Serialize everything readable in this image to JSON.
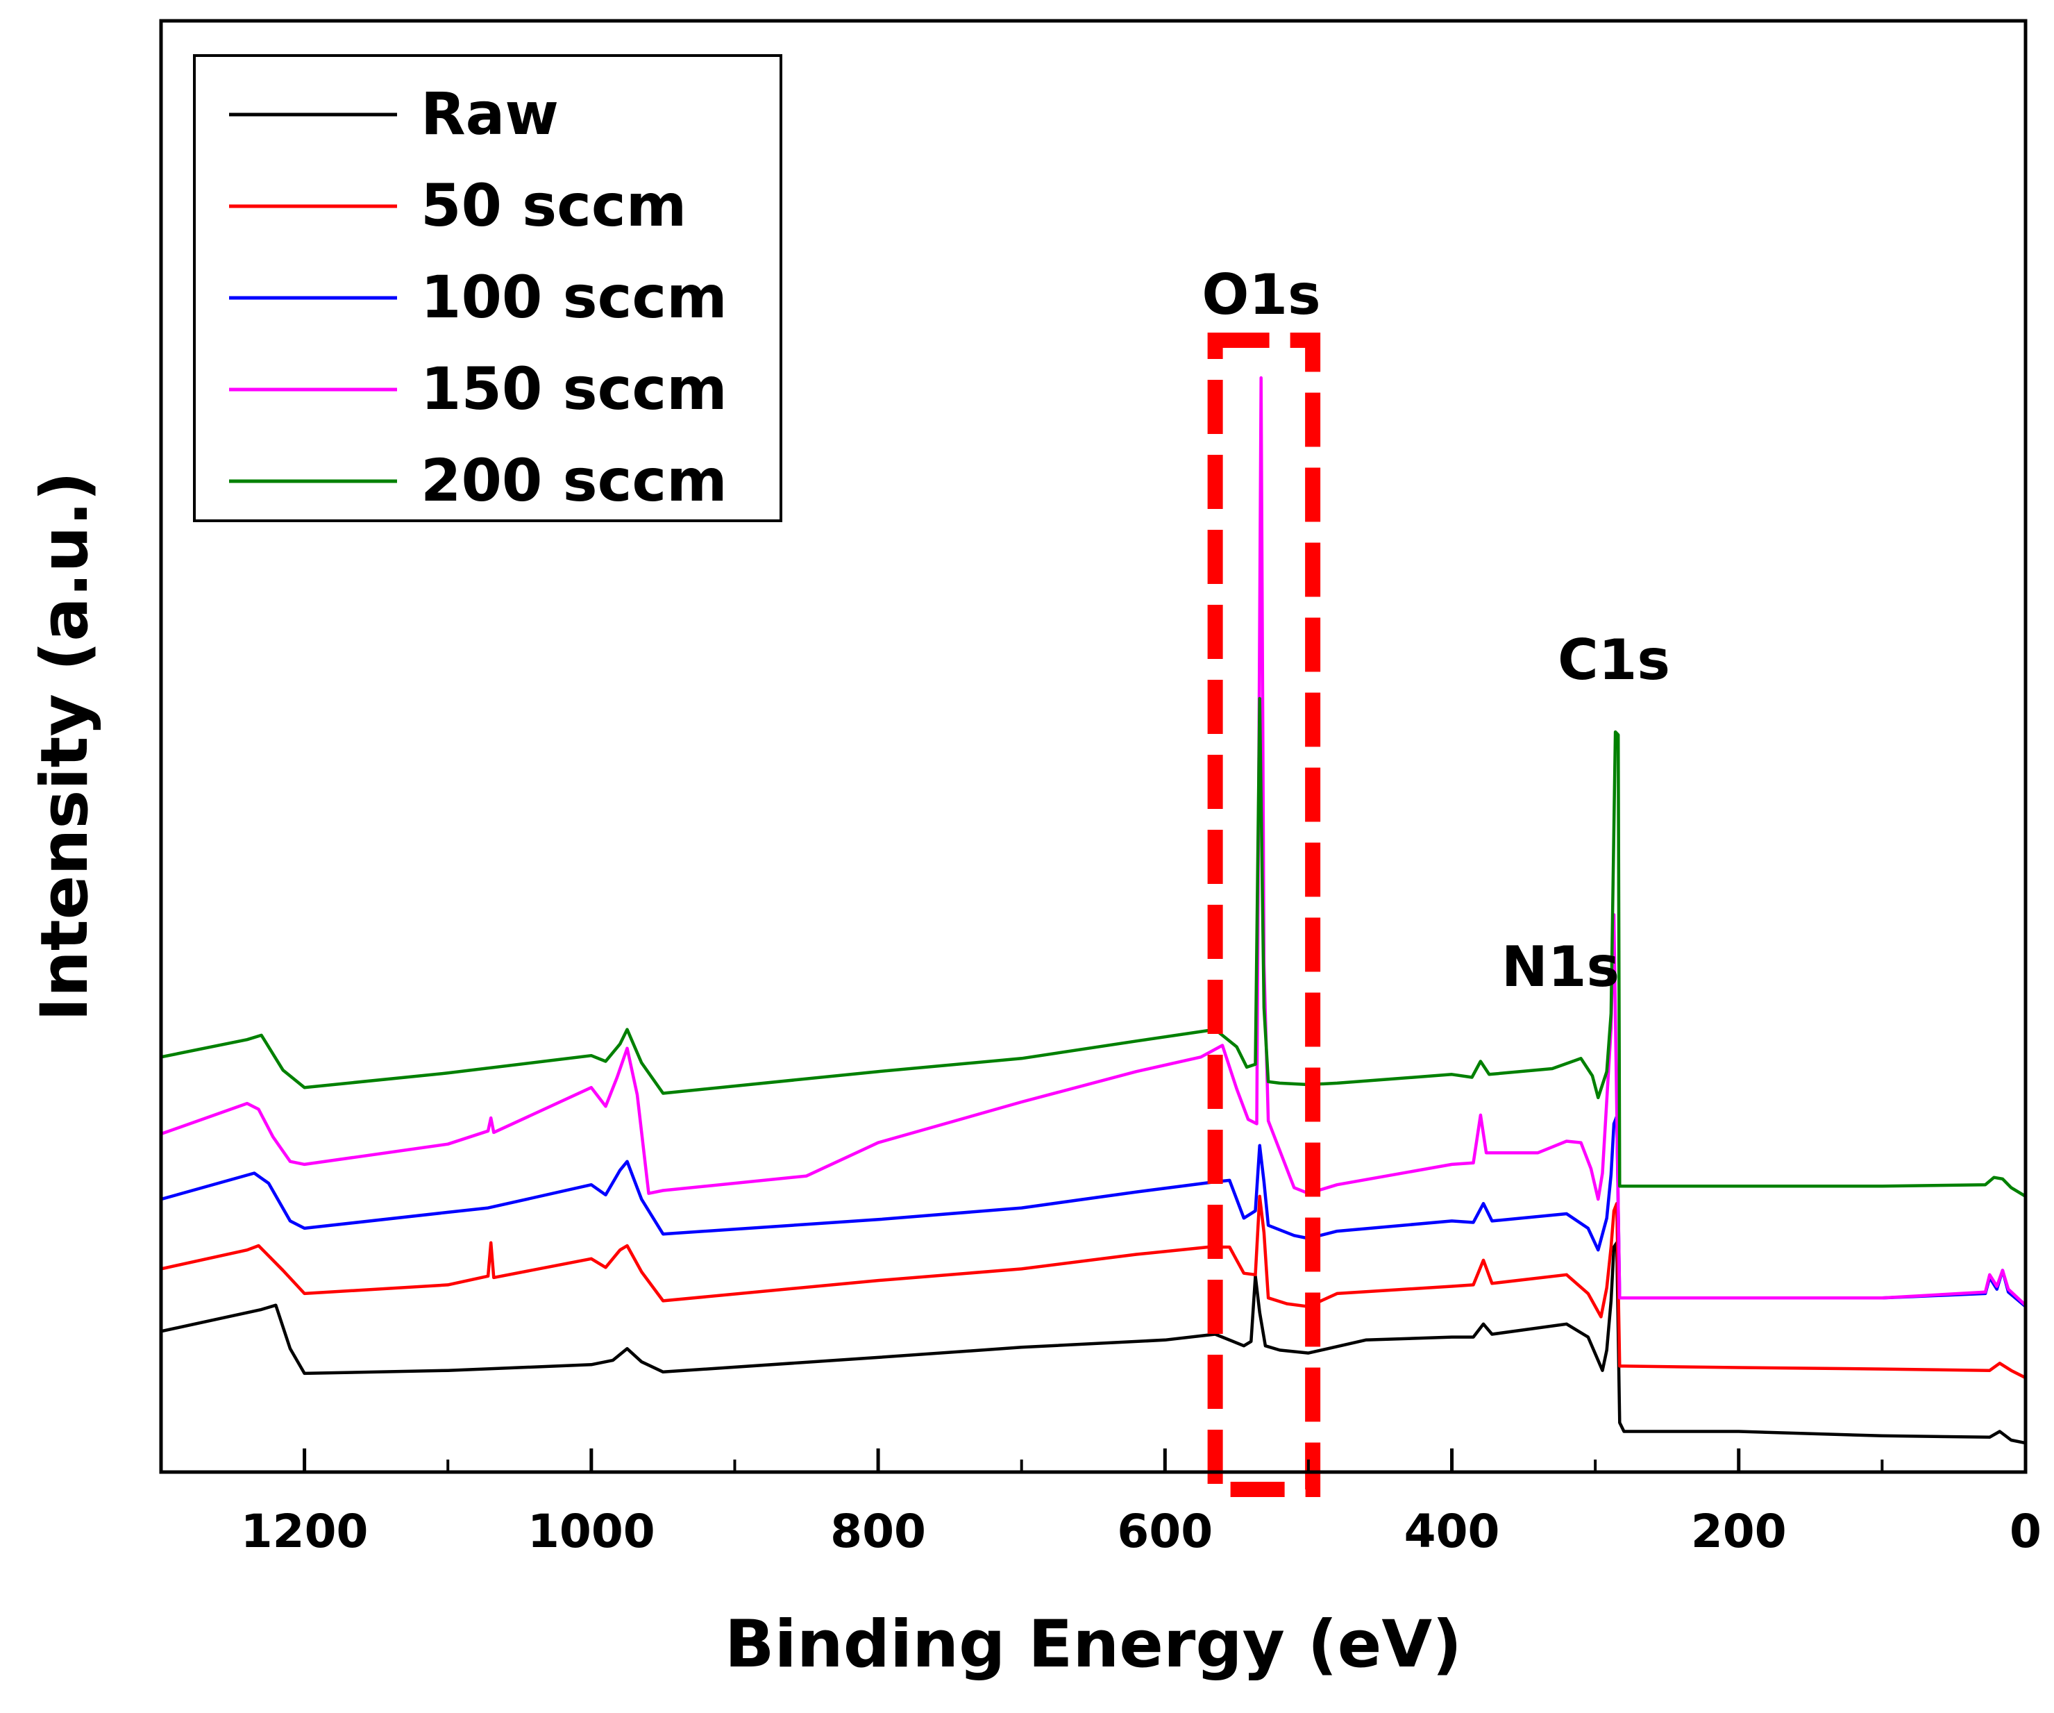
{
  "chart_data": {
    "type": "line",
    "title": "",
    "xlabel": "Binding Energy (eV)",
    "ylabel": "Intensity (a.u.)",
    "xlim": [
      1300,
      0
    ],
    "x_reversed": true,
    "ylim": [
      0,
      100
    ],
    "y_ticks_labeled": false,
    "grid": false,
    "legend_position": "top-left",
    "x_ticks": [
      1200,
      1000,
      800,
      600,
      400,
      200,
      0
    ],
    "x_tick_labels": [
      "1200",
      "1000",
      "800",
      "600",
      "400",
      "200",
      "0"
    ],
    "x_minor_ticks": [
      1100,
      900,
      700,
      500,
      300,
      100
    ],
    "annotations": [
      {
        "text": "O1s",
        "x": 532,
        "y": 81
      },
      {
        "text": "N1s",
        "x": 400,
        "y": 34
      },
      {
        "text": "C1s",
        "x": 285,
        "y": 55
      }
    ],
    "highlight_box": {
      "x_from": 565,
      "x_to": 497,
      "color": "#ff0000",
      "style": "dashed"
    },
    "series": [
      {
        "name": "Raw",
        "color": "#000000",
        "points": [
          [
            1300,
            9.7
          ],
          [
            1230,
            11.2
          ],
          [
            1220,
            11.5
          ],
          [
            1210,
            8.5
          ],
          [
            1200,
            6.8
          ],
          [
            1100,
            7
          ],
          [
            1000,
            7.4
          ],
          [
            985,
            7.7
          ],
          [
            975,
            8.5
          ],
          [
            965,
            7.6
          ],
          [
            950,
            6.9
          ],
          [
            800,
            7.9
          ],
          [
            700,
            8.6
          ],
          [
            600,
            9.1
          ],
          [
            565,
            9.5
          ],
          [
            545,
            8.7
          ],
          [
            540,
            9
          ],
          [
            537,
            13.5
          ],
          [
            534,
            11
          ],
          [
            530,
            8.7
          ],
          [
            520,
            8.4
          ],
          [
            500,
            8.2
          ],
          [
            460,
            9.1
          ],
          [
            400,
            9.3
          ],
          [
            385,
            9.3
          ],
          [
            378,
            10.2
          ],
          [
            372,
            9.5
          ],
          [
            320,
            10.2
          ],
          [
            305,
            9.3
          ],
          [
            295,
            7
          ],
          [
            292,
            8.4
          ],
          [
            289,
            11.8
          ],
          [
            287,
            15.5
          ],
          [
            285,
            15.8
          ],
          [
            283,
            3.4
          ],
          [
            280,
            2.8
          ],
          [
            200,
            2.8
          ],
          [
            100,
            2.5
          ],
          [
            25,
            2.4
          ],
          [
            18,
            2.8
          ],
          [
            10,
            2.2
          ],
          [
            0,
            2
          ]
        ]
      },
      {
        "name": "50 sccm",
        "color": "#ff0000",
        "points": [
          [
            1300,
            14
          ],
          [
            1240,
            15.3
          ],
          [
            1232,
            15.6
          ],
          [
            1215,
            13.9
          ],
          [
            1200,
            12.3
          ],
          [
            1100,
            12.9
          ],
          [
            1072,
            13.5
          ],
          [
            1070,
            15.8
          ],
          [
            1068,
            13.4
          ],
          [
            1000,
            14.7
          ],
          [
            990,
            14.1
          ],
          [
            980,
            15.3
          ],
          [
            975,
            15.6
          ],
          [
            965,
            13.8
          ],
          [
            950,
            11.8
          ],
          [
            800,
            13.2
          ],
          [
            700,
            14
          ],
          [
            620,
            15
          ],
          [
            570,
            15.5
          ],
          [
            555,
            15.5
          ],
          [
            545,
            13.7
          ],
          [
            537,
            13.6
          ],
          [
            534,
            19
          ],
          [
            531,
            16.5
          ],
          [
            528,
            12
          ],
          [
            515,
            11.6
          ],
          [
            500,
            11.4
          ],
          [
            480,
            12.3
          ],
          [
            400,
            12.8
          ],
          [
            385,
            12.9
          ],
          [
            378,
            14.6
          ],
          [
            372,
            13
          ],
          [
            320,
            13.6
          ],
          [
            305,
            12.3
          ],
          [
            296,
            10.7
          ],
          [
            292,
            12.7
          ],
          [
            289,
            15.5
          ],
          [
            287,
            18
          ],
          [
            285,
            18.5
          ],
          [
            283,
            7.3
          ],
          [
            280,
            7.3
          ],
          [
            200,
            7.2
          ],
          [
            100,
            7.1
          ],
          [
            25,
            7
          ],
          [
            18,
            7.5
          ],
          [
            10,
            7
          ],
          [
            0,
            6.5
          ]
        ]
      },
      {
        "name": "100 sccm",
        "color": "#0000ff",
        "points": [
          [
            1300,
            18.8
          ],
          [
            1235,
            20.6
          ],
          [
            1225,
            19.9
          ],
          [
            1210,
            17.3
          ],
          [
            1200,
            16.8
          ],
          [
            1100,
            17.9
          ],
          [
            1072,
            18.2
          ],
          [
            1000,
            19.8
          ],
          [
            990,
            19.1
          ],
          [
            980,
            20.8
          ],
          [
            975,
            21.4
          ],
          [
            965,
            18.8
          ],
          [
            950,
            16.4
          ],
          [
            800,
            17.4
          ],
          [
            700,
            18.2
          ],
          [
            620,
            19.3
          ],
          [
            565,
            20
          ],
          [
            555,
            20.1
          ],
          [
            545,
            17.5
          ],
          [
            537,
            18
          ],
          [
            534,
            22.5
          ],
          [
            531,
            20
          ],
          [
            528,
            17
          ],
          [
            510,
            16.3
          ],
          [
            500,
            16.1
          ],
          [
            480,
            16.6
          ],
          [
            400,
            17.3
          ],
          [
            385,
            17.2
          ],
          [
            378,
            18.5
          ],
          [
            372,
            17.3
          ],
          [
            320,
            17.8
          ],
          [
            305,
            16.8
          ],
          [
            298,
            15.3
          ],
          [
            292,
            17.5
          ],
          [
            289,
            20.5
          ],
          [
            287,
            24
          ],
          [
            285,
            24.5
          ],
          [
            283,
            12
          ],
          [
            280,
            12
          ],
          [
            200,
            12
          ],
          [
            100,
            12
          ],
          [
            28,
            12.3
          ],
          [
            25,
            13.4
          ],
          [
            20,
            12.6
          ],
          [
            16,
            13.9
          ],
          [
            12,
            12.4
          ],
          [
            0,
            11.4
          ]
        ]
      },
      {
        "name": "150 sccm",
        "color": "#ff00ff",
        "points": [
          [
            1300,
            23.3
          ],
          [
            1240,
            25.4
          ],
          [
            1232,
            25
          ],
          [
            1222,
            23.1
          ],
          [
            1210,
            21.4
          ],
          [
            1200,
            21.2
          ],
          [
            1100,
            22.6
          ],
          [
            1072,
            23.5
          ],
          [
            1070,
            24.4
          ],
          [
            1068,
            23.4
          ],
          [
            1000,
            26.5
          ],
          [
            990,
            25.2
          ],
          [
            982,
            27.2
          ],
          [
            975,
            29.2
          ],
          [
            968,
            26
          ],
          [
            960,
            19.2
          ],
          [
            950,
            19.4
          ],
          [
            850,
            20.4
          ],
          [
            800,
            22.7
          ],
          [
            700,
            25.5
          ],
          [
            620,
            27.6
          ],
          [
            575,
            28.6
          ],
          [
            560,
            29.4
          ],
          [
            550,
            26.4
          ],
          [
            542,
            24.3
          ],
          [
            536,
            24
          ],
          [
            533,
            75.4
          ],
          [
            531,
            35
          ],
          [
            528,
            24.2
          ],
          [
            510,
            19.6
          ],
          [
            500,
            19.2
          ],
          [
            480,
            19.8
          ],
          [
            400,
            21.2
          ],
          [
            385,
            21.3
          ],
          [
            380,
            24.6
          ],
          [
            376,
            22
          ],
          [
            340,
            22
          ],
          [
            320,
            22.8
          ],
          [
            310,
            22.7
          ],
          [
            303,
            20.9
          ],
          [
            298,
            18.8
          ],
          [
            295,
            20.6
          ],
          [
            292,
            25.6
          ],
          [
            289,
            30.6
          ],
          [
            287,
            38.4
          ],
          [
            285,
            25
          ],
          [
            283,
            12
          ],
          [
            200,
            12
          ],
          [
            100,
            12
          ],
          [
            28,
            12.4
          ],
          [
            25,
            13.6
          ],
          [
            20,
            12.8
          ],
          [
            16,
            13.9
          ],
          [
            12,
            12.6
          ],
          [
            0,
            11.5
          ]
        ]
      },
      {
        "name": "200 sccm",
        "color": "#008000",
        "points": [
          [
            1300,
            28.6
          ],
          [
            1240,
            29.8
          ],
          [
            1230,
            30.1
          ],
          [
            1215,
            27.7
          ],
          [
            1200,
            26.5
          ],
          [
            1100,
            27.5
          ],
          [
            1000,
            28.7
          ],
          [
            990,
            28.3
          ],
          [
            980,
            29.5
          ],
          [
            975,
            30.5
          ],
          [
            965,
            28.2
          ],
          [
            950,
            26.1
          ],
          [
            800,
            27.6
          ],
          [
            700,
            28.5
          ],
          [
            620,
            29.7
          ],
          [
            565,
            30.5
          ],
          [
            550,
            29.3
          ],
          [
            543,
            27.9
          ],
          [
            537,
            28.1
          ],
          [
            534,
            53.3
          ],
          [
            531,
            32
          ],
          [
            528,
            26.9
          ],
          [
            520,
            26.8
          ],
          [
            500,
            26.7
          ],
          [
            480,
            26.8
          ],
          [
            400,
            27.4
          ],
          [
            386,
            27.2
          ],
          [
            380,
            28.3
          ],
          [
            374,
            27.4
          ],
          [
            330,
            27.8
          ],
          [
            310,
            28.5
          ],
          [
            302,
            27.3
          ],
          [
            298,
            25.8
          ],
          [
            292,
            27.6
          ],
          [
            289,
            31.6
          ],
          [
            286,
            51
          ],
          [
            284,
            50.8
          ],
          [
            283,
            19.7
          ],
          [
            280,
            19.7
          ],
          [
            200,
            19.7
          ],
          [
            100,
            19.7
          ],
          [
            28,
            19.8
          ],
          [
            22,
            20.3
          ],
          [
            16,
            20.2
          ],
          [
            10,
            19.6
          ],
          [
            0,
            19
          ]
        ]
      }
    ]
  }
}
